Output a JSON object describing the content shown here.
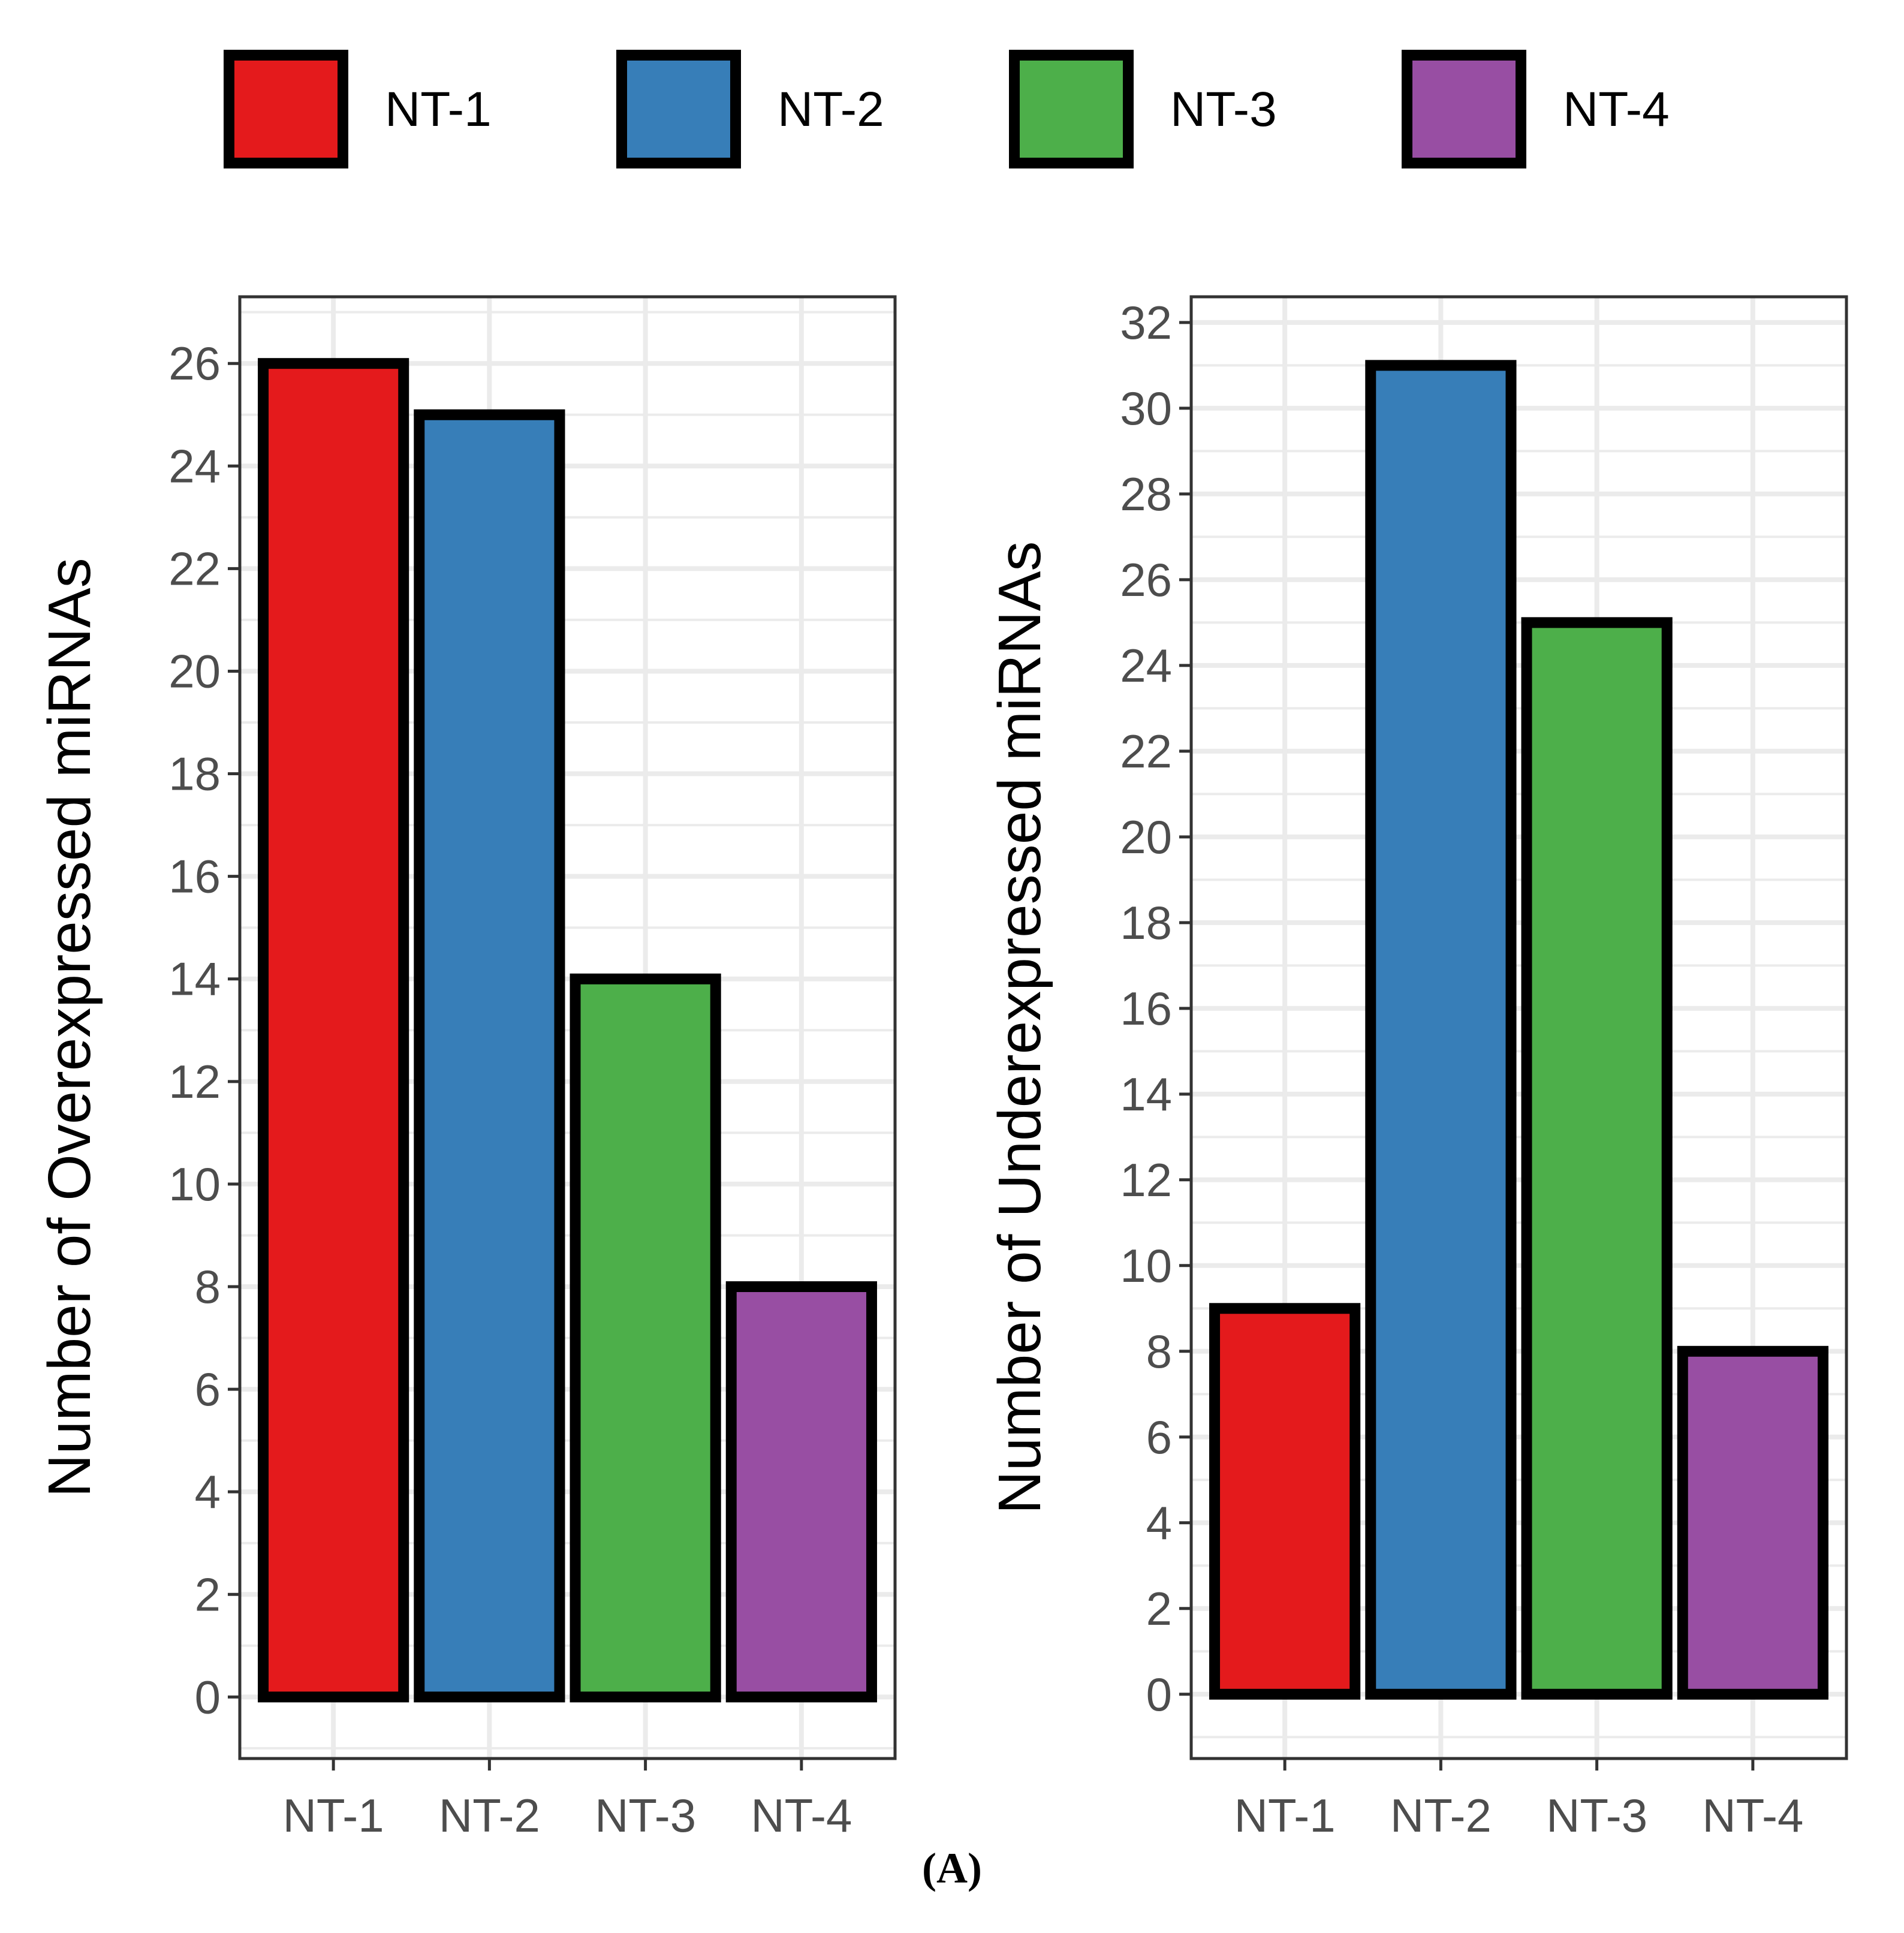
{
  "legend": {
    "items": [
      {
        "label": "NT-1",
        "color": "#E41A1C"
      },
      {
        "label": "NT-2",
        "color": "#377EB8"
      },
      {
        "label": "NT-3",
        "color": "#4DAF4A"
      },
      {
        "label": "NT-4",
        "color": "#984EA3"
      }
    ]
  },
  "caption": "(A)",
  "chart_data": [
    {
      "type": "bar",
      "title": "",
      "xlabel": "",
      "ylabel": "Number of Overexpressed miRNAs",
      "categories": [
        "NT-1",
        "NT-2",
        "NT-3",
        "NT-4"
      ],
      "values": [
        26,
        25,
        14,
        8
      ],
      "colors": [
        "#E41A1C",
        "#377EB8",
        "#4DAF4A",
        "#984EA3"
      ],
      "ylim": [
        -1.2,
        27.3
      ],
      "yticks": [
        0,
        2,
        4,
        6,
        8,
        10,
        12,
        14,
        16,
        18,
        20,
        22,
        24,
        26
      ],
      "grid": true
    },
    {
      "type": "bar",
      "title": "",
      "xlabel": "",
      "ylabel": "Number of Underexpressed miRNAs",
      "categories": [
        "NT-1",
        "NT-2",
        "NT-3",
        "NT-4"
      ],
      "values": [
        9,
        31,
        25,
        8
      ],
      "colors": [
        "#E41A1C",
        "#377EB8",
        "#4DAF4A",
        "#984EA3"
      ],
      "ylim": [
        -1.5,
        32.6
      ],
      "yticks": [
        0,
        2,
        4,
        6,
        8,
        10,
        12,
        14,
        16,
        18,
        20,
        22,
        24,
        26,
        28,
        30,
        32
      ],
      "grid": true
    }
  ]
}
